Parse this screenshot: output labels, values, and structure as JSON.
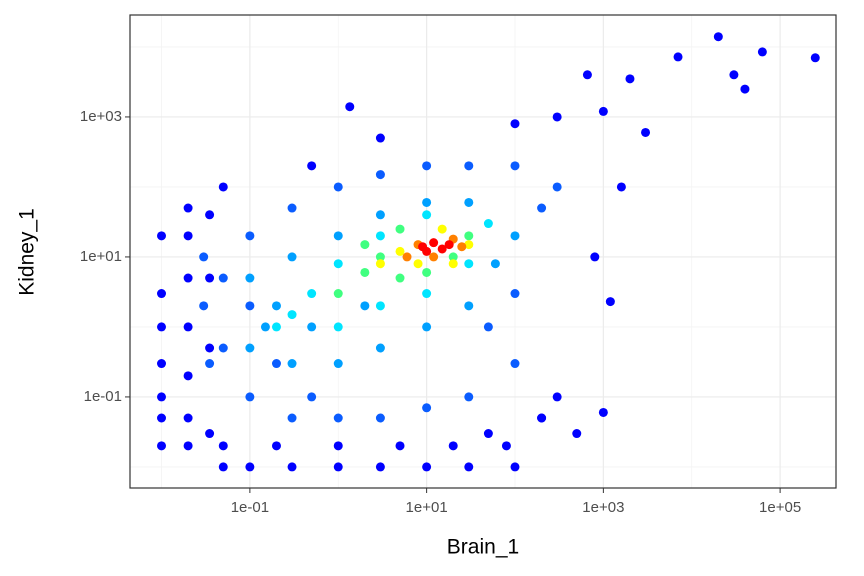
{
  "chart_data": {
    "type": "scatter",
    "x_label": "Brain_1",
    "y_label": "Kidney_1",
    "xlog": true,
    "ylog": true,
    "grid": true,
    "xlim": [
      0.0044,
      429000
    ],
    "ylim": [
      0.005,
      28600
    ],
    "xticks": [
      {
        "value": 0.1,
        "label": "1e-01"
      },
      {
        "value": 10,
        "label": "1e+01"
      },
      {
        "value": 1000,
        "label": "1e+03"
      },
      {
        "value": 100000,
        "label": "1e+05"
      }
    ],
    "yticks": [
      {
        "value": 0.1,
        "label": "1e-01"
      },
      {
        "value": 10,
        "label": "1e+01"
      },
      {
        "value": 1000,
        "label": "1e+03"
      }
    ],
    "xminor": [
      0.01,
      1,
      100,
      10000
    ],
    "yminor": [
      0.01,
      1,
      100,
      10000
    ],
    "series": [
      {
        "color": "#0000ff",
        "x": [
          0.01,
          0.01,
          0.01,
          0.01,
          0.01,
          0.01,
          0.01,
          0.02,
          0.02,
          0.02,
          0.02,
          0.02,
          0.02,
          0.02,
          0.035,
          0.035,
          0.035,
          0.035,
          0.05,
          0.1,
          0.3,
          1,
          3,
          10,
          30,
          100,
          0.05,
          0.2,
          1,
          5,
          20,
          50,
          200,
          0.5,
          3,
          1000,
          300,
          100,
          1.35,
          20000,
          63000,
          250000,
          7000,
          30000,
          40000,
          660,
          2000,
          1200,
          300,
          1000,
          0.05,
          200,
          500,
          80,
          1600,
          800,
          3000
        ],
        "values": [
          0.02,
          0.05,
          0.1,
          0.3,
          1,
          3,
          20,
          0.02,
          0.05,
          0.2,
          1,
          5,
          20,
          50,
          0.03,
          0.5,
          5,
          40,
          0.01,
          0.01,
          0.01,
          0.01,
          0.01,
          0.01,
          0.01,
          0.01,
          0.02,
          0.02,
          0.02,
          0.02,
          0.02,
          0.03,
          0.05,
          200,
          500,
          1200,
          1000,
          800,
          1400,
          14000,
          8500,
          7000,
          7200,
          4000,
          2500,
          4000,
          3500,
          2.3,
          0.1,
          0.06,
          100,
          0.05,
          0.03,
          0.02,
          100,
          10,
          600
        ]
      },
      {
        "color": "#0a5cff",
        "x": [
          0.05,
          0.05,
          0.1,
          0.1,
          0.1,
          0.3,
          0.3,
          1,
          1,
          3,
          3,
          10,
          10,
          30,
          30,
          100,
          100,
          200,
          300,
          100,
          50,
          0.2,
          0.5,
          0.03,
          0.03,
          0.035
        ],
        "values": [
          0.5,
          5,
          0.1,
          2,
          20,
          0.05,
          50,
          0.05,
          100,
          0.05,
          150,
          0.07,
          200,
          0.1,
          200,
          0.3,
          200,
          50,
          100,
          3,
          1,
          0.3,
          0.1,
          2,
          10,
          0.3
        ]
      },
      {
        "color": "#00a0ff",
        "x": [
          0.1,
          0.1,
          0.3,
          0.3,
          1,
          1,
          3,
          3,
          10,
          10,
          30,
          30,
          100,
          60,
          0.2,
          0.5,
          2,
          0.15
        ],
        "values": [
          0.5,
          5,
          0.3,
          10,
          0.3,
          20,
          0.5,
          40,
          1,
          60,
          2,
          60,
          20,
          8,
          2,
          1,
          2,
          1
        ]
      },
      {
        "color": "#00e5ff",
        "x": [
          0.3,
          0.5,
          1,
          1,
          3,
          3,
          10,
          10,
          30,
          50,
          0.2
        ],
        "values": [
          1.5,
          3,
          1,
          8,
          2,
          20,
          3,
          40,
          8,
          30,
          1
        ]
      },
      {
        "color": "#40ff80",
        "x": [
          1,
          2,
          3,
          5,
          10,
          5,
          20,
          30,
          2
        ],
        "values": [
          3,
          6,
          10,
          5,
          6,
          25,
          10,
          20,
          15
        ]
      },
      {
        "color": "#ffff00",
        "x": [
          3,
          5,
          8,
          15,
          30,
          20
        ],
        "values": [
          8,
          12,
          8,
          25,
          15,
          8
        ]
      },
      {
        "color": "#ff8000",
        "x": [
          6,
          8,
          12,
          20,
          25
        ],
        "values": [
          10,
          15,
          10,
          18,
          14
        ]
      },
      {
        "color": "#ff0000",
        "x": [
          10,
          12,
          15,
          18,
          9
        ],
        "values": [
          12,
          16,
          13,
          15,
          14
        ]
      }
    ]
  }
}
